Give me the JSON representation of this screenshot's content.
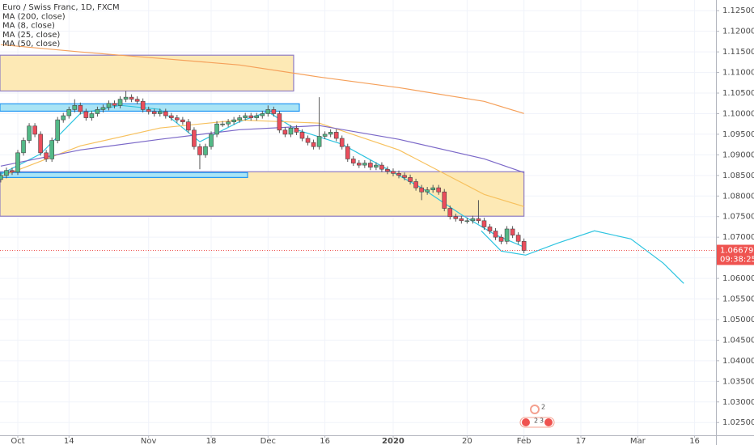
{
  "chart_data": {
    "type": "candlestick",
    "categories": [
      null,
      null,
      null,
      null,
      null,
      null,
      null,
      null,
      null,
      null,
      null,
      null,
      null,
      null,
      null,
      null,
      null,
      null,
      null,
      null,
      null,
      null,
      null,
      null,
      null,
      null,
      null,
      null,
      null,
      null,
      null,
      null,
      null,
      null,
      null,
      null,
      null,
      null,
      null,
      null,
      null,
      null,
      null,
      null,
      null,
      null,
      null,
      null,
      null,
      null,
      null,
      null,
      null,
      null,
      null,
      null,
      null,
      null,
      null,
      null,
      null,
      null,
      null,
      null,
      null,
      null,
      null,
      null,
      null,
      null,
      null,
      null,
      null,
      null,
      null,
      null,
      null,
      null,
      null,
      null,
      null,
      null,
      null,
      null,
      null,
      null,
      null,
      null,
      null,
      null,
      null,
      null,
      null
    ],
    "xlim": [
      -0.13,
      125.76
    ],
    "xticks": [
      {
        "value": 3,
        "label": "Oct"
      },
      {
        "value": 12,
        "label": "14"
      },
      {
        "value": 26,
        "label": "Nov"
      },
      {
        "value": 37,
        "label": "18"
      },
      {
        "value": 47,
        "label": "Dec"
      },
      {
        "value": 57,
        "label": "16"
      },
      {
        "value": 69,
        "label": "2020"
      },
      {
        "value": 82,
        "label": "20"
      },
      {
        "value": 92,
        "label": "Feb"
      },
      {
        "value": 102,
        "label": "17"
      },
      {
        "value": 112,
        "label": "Mar"
      },
      {
        "value": 122,
        "label": "16"
      }
    ],
    "ylim": [
      1.0219,
      1.1276
    ],
    "yticks": [
      {
        "value": 1.125,
        "label": "1.12500"
      },
      {
        "value": 1.12,
        "label": "1.12000"
      },
      {
        "value": 1.115,
        "label": "1.11500"
      },
      {
        "value": 1.11,
        "label": "1.11000"
      },
      {
        "value": 1.105,
        "label": "1.10500"
      },
      {
        "value": 1.1,
        "label": "1.10000"
      },
      {
        "value": 1.095,
        "label": "1.09500"
      },
      {
        "value": 1.09,
        "label": "1.09000"
      },
      {
        "value": 1.085,
        "label": "1.08500"
      },
      {
        "value": 1.08,
        "label": "1.08000"
      },
      {
        "value": 1.075,
        "label": "1.07500"
      },
      {
        "value": 1.07,
        "label": "1.07000"
      },
      {
        "value": 1.065,
        "label": "1.06500"
      },
      {
        "value": 1.06,
        "label": "1.06000"
      },
      {
        "value": 1.055,
        "label": "1.05500"
      },
      {
        "value": 1.05,
        "label": "1.05000"
      },
      {
        "value": 1.045,
        "label": "1.04500"
      },
      {
        "value": 1.04,
        "label": "1.04000"
      },
      {
        "value": 1.035,
        "label": "1.03500"
      },
      {
        "value": 1.03,
        "label": "1.03000"
      },
      {
        "value": 1.025,
        "label": "1.02500"
      }
    ],
    "grid": true,
    "series": [
      {
        "name": "Euro / Swiss Franc, 1D, FXCM",
        "up_color": "#53b987",
        "down_color": "#eb4d5c",
        "open": [
          1.084,
          1.085,
          1.0862,
          1.0858,
          1.0905,
          1.0935,
          1.097,
          1.095,
          1.0905,
          1.089,
          1.0935,
          1.0985,
          1.0995,
          1.101,
          1.102,
          1.1005,
          1.099,
          1.1,
          1.101,
          1.1015,
          1.1025,
          1.102,
          1.1035,
          1.104,
          1.1035,
          1.103,
          1.101,
          1.1005,
          1.1,
          1.1005,
          1.0995,
          1.099,
          1.0985,
          1.098,
          1.096,
          1.092,
          1.09,
          1.092,
          1.095,
          1.0975,
          1.0975,
          1.098,
          1.0985,
          1.099,
          1.0995,
          1.099,
          1.0995,
          1.1,
          1.101,
          1.1,
          1.096,
          1.095,
          1.0965,
          1.0955,
          1.094,
          1.093,
          1.092,
          1.0945,
          1.095,
          1.0955,
          1.094,
          1.092,
          1.089,
          1.088,
          1.0875,
          1.088,
          1.087,
          1.0875,
          1.0865,
          1.086,
          1.0855,
          1.085,
          1.0845,
          1.0835,
          1.082,
          1.081,
          1.0815,
          1.082,
          1.081,
          1.077,
          1.075,
          1.0745,
          1.074,
          1.074,
          1.0745,
          1.074,
          1.0725,
          1.0715,
          1.07,
          1.069,
          1.072,
          1.0705,
          1.069
        ],
        "high": [
          1.0857,
          1.0869,
          1.0869,
          1.0912,
          1.0942,
          1.0977,
          1.0977,
          1.0957,
          1.0912,
          1.0942,
          1.0992,
          1.1002,
          1.1017,
          1.1035,
          1.1027,
          1.1012,
          1.1007,
          1.1017,
          1.1022,
          1.1032,
          1.1032,
          1.1042,
          1.1055,
          1.1047,
          1.1042,
          1.1037,
          1.1017,
          1.1012,
          1.1012,
          1.1012,
          1.1002,
          1.0997,
          1.0992,
          1.0987,
          1.0967,
          1.0927,
          1.0927,
          1.0957,
          1.0982,
          1.0982,
          1.0987,
          1.0992,
          1.0997,
          1.1002,
          1.1002,
          1.1002,
          1.1007,
          1.102,
          1.1017,
          1.1007,
          1.0967,
          1.0972,
          1.0972,
          1.0962,
          1.0947,
          1.0937,
          1.104,
          1.0957,
          1.0962,
          1.0962,
          1.0947,
          1.0927,
          1.0897,
          1.0887,
          1.0887,
          1.0887,
          1.0882,
          1.0882,
          1.0872,
          1.0867,
          1.0862,
          1.0857,
          1.0852,
          1.0842,
          1.0827,
          1.0822,
          1.0827,
          1.0827,
          1.0817,
          1.0777,
          1.0757,
          1.0752,
          1.0747,
          1.0752,
          1.079,
          1.0747,
          1.0732,
          1.0722,
          1.0707,
          1.0727,
          1.0727,
          1.0712,
          1.0697
        ],
        "low": [
          1.0833,
          1.0843,
          1.0851,
          1.0851,
          1.0898,
          1.0928,
          1.0943,
          1.0898,
          1.0883,
          1.0883,
          1.0928,
          1.0978,
          1.0988,
          1.1003,
          1.0998,
          1.0983,
          1.0983,
          1.0993,
          1.1003,
          1.1008,
          1.1013,
          1.1013,
          1.1028,
          1.1028,
          1.1023,
          1.1003,
          1.0998,
          1.0993,
          1.0993,
          1.0988,
          1.0983,
          1.0978,
          1.0973,
          1.0953,
          1.0913,
          1.0865,
          1.0893,
          1.0913,
          1.0943,
          1.0968,
          1.0968,
          1.0973,
          1.0978,
          1.0983,
          1.0983,
          1.0983,
          1.0988,
          1.0993,
          1.0993,
          1.0953,
          1.0943,
          1.0943,
          1.0948,
          1.0933,
          1.0923,
          1.0913,
          1.0913,
          1.0938,
          1.0943,
          1.0933,
          1.0913,
          1.0883,
          1.0873,
          1.0868,
          1.0868,
          1.0863,
          1.0863,
          1.0858,
          1.0853,
          1.0848,
          1.0843,
          1.0838,
          1.0828,
          1.0813,
          1.079,
          1.0803,
          1.0808,
          1.0803,
          1.0763,
          1.0743,
          1.0738,
          1.0733,
          1.0733,
          1.0733,
          1.0733,
          1.0718,
          1.0708,
          1.0693,
          1.0683,
          1.0683,
          1.0698,
          1.0683,
          1.0661
        ],
        "close": [
          1.085,
          1.0862,
          1.0858,
          1.0905,
          1.0935,
          1.097,
          1.095,
          1.0905,
          1.089,
          1.0935,
          1.0985,
          1.0995,
          1.101,
          1.102,
          1.1005,
          1.099,
          1.1,
          1.101,
          1.1015,
          1.1025,
          1.102,
          1.1035,
          1.104,
          1.1035,
          1.103,
          1.101,
          1.1005,
          1.1,
          1.1005,
          1.0995,
          1.099,
          1.0985,
          1.098,
          1.096,
          1.092,
          1.09,
          1.092,
          1.095,
          1.0975,
          1.0975,
          1.098,
          1.0985,
          1.099,
          1.0995,
          1.099,
          1.0995,
          1.1,
          1.101,
          1.1,
          1.096,
          1.095,
          1.0965,
          1.0955,
          1.094,
          1.093,
          1.092,
          1.0945,
          1.095,
          1.0955,
          1.094,
          1.092,
          1.089,
          1.088,
          1.0875,
          1.088,
          1.087,
          1.0875,
          1.0865,
          1.086,
          1.0855,
          1.085,
          1.0845,
          1.0835,
          1.082,
          1.081,
          1.0815,
          1.082,
          1.081,
          1.077,
          1.075,
          1.0745,
          1.074,
          1.074,
          1.0745,
          1.074,
          1.0725,
          1.0715,
          1.07,
          1.069,
          1.072,
          1.0705,
          1.069,
          1.0668
        ]
      },
      {
        "name": "MA (200, close)",
        "color": "#f5a05a",
        "x": [
          0,
          14,
          28,
          42,
          56,
          70,
          85,
          92
        ],
        "values": [
          1.11675,
          1.11498,
          1.11341,
          1.11183,
          1.10889,
          1.10633,
          1.10299,
          1.10004
        ]
      },
      {
        "name": "MA (8, close)",
        "color": "#2ec4e0",
        "x": [
          0,
          7,
          14,
          21,
          28,
          35,
          42,
          47,
          52,
          60,
          67,
          74,
          81,
          87,
          92
        ],
        "values": [
          1.08531,
          1.09022,
          1.10004,
          1.10201,
          1.10103,
          1.09317,
          1.09808,
          1.10044,
          1.09611,
          1.09258,
          1.08727,
          1.08196,
          1.07548,
          1.07057,
          1.06762
        ]
      },
      {
        "name": "MA (25, close)",
        "color": "#f7c15e",
        "x": [
          0,
          14,
          28,
          42,
          56,
          70,
          85,
          92
        ],
        "values": [
          1.08472,
          1.09218,
          1.09651,
          1.09847,
          1.09769,
          1.0912,
          1.08039,
          1.07745
        ]
      },
      {
        "name": "MA (50, close)",
        "color": "#7b68c8",
        "x": [
          0,
          14,
          28,
          42,
          56,
          70,
          85,
          92
        ],
        "values": [
          1.08727,
          1.0912,
          1.09376,
          1.09611,
          1.0971,
          1.09376,
          1.08904,
          1.0857
        ]
      }
    ],
    "projection": {
      "color": "#2ec4e0",
      "x": [
        84.5,
        88,
        92.3,
        98,
        104.4,
        110.8,
        116.5,
        120.1
      ],
      "values": [
        1.07155,
        1.06664,
        1.06566,
        1.06861,
        1.07155,
        1.06959,
        1.06369,
        1.05878
      ]
    },
    "zones": [
      {
        "x": [
          -0.13,
          51.5
        ],
        "y": [
          1.1142,
          1.1055
        ],
        "fill": "#fde9b5",
        "stroke": "#8e7cc3"
      },
      {
        "x": [
          -0.13,
          52.5
        ],
        "y": [
          1.1024,
          1.1006
        ],
        "fill": "#a9e4f5",
        "stroke": "#2196f3"
      },
      {
        "x": [
          -0.13,
          92
        ],
        "y": [
          1.0859,
          1.0751
        ],
        "fill": "#fde9b5",
        "stroke": "#8e7cc3"
      },
      {
        "x": [
          -0.13,
          43.4
        ],
        "y": [
          1.0857,
          1.0845
        ],
        "fill": "#a9e4f5",
        "stroke": "#2196f3"
      }
    ],
    "last_price": {
      "value": 1.06679,
      "label": "1.06679",
      "color": "#ef5350"
    },
    "countdown": "09:38:25",
    "events": [
      "2",
      "2",
      "3"
    ]
  }
}
